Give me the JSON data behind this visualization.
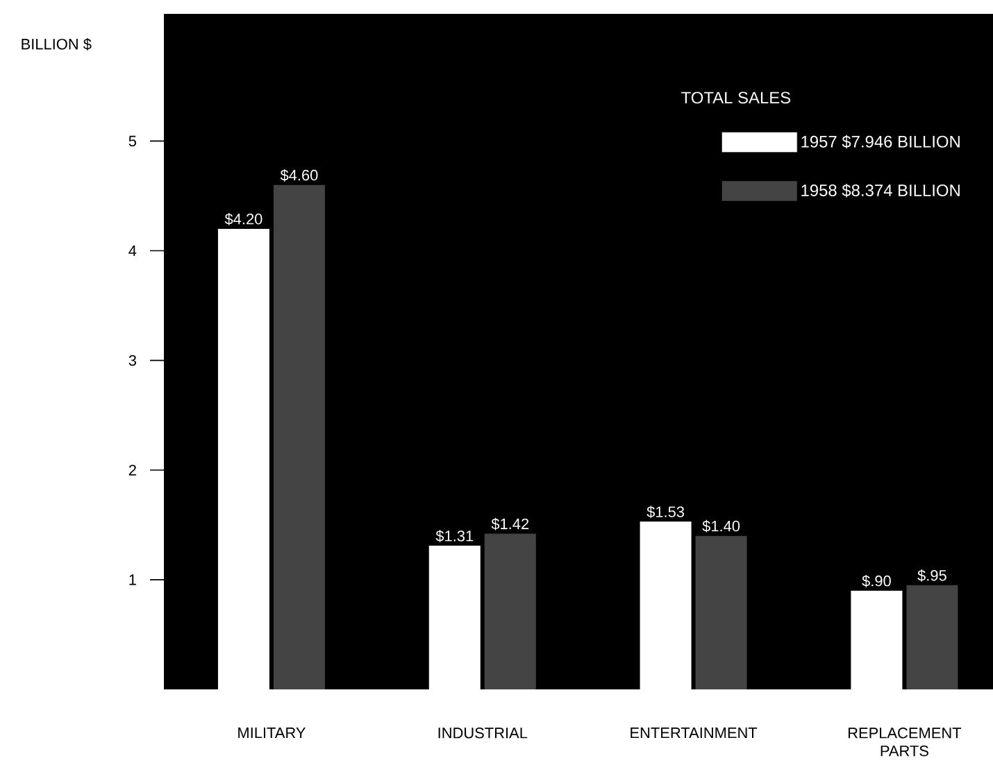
{
  "chart_data": {
    "type": "bar",
    "ylabel": "BILLION $",
    "legend_title": "TOTAL SALES",
    "legend": "top right",
    "categories": [
      "MILITARY",
      "INDUSTRIAL",
      "ENTERTAINMENT",
      "REPLACEMENT PARTS"
    ],
    "series": [
      {
        "name": "1957 $7.946 BILLION",
        "color": "#ffffff",
        "values": [
          4.2,
          1.31,
          1.53,
          0.9
        ],
        "value_labels": [
          "$4.20",
          "$1.31",
          "$1.53",
          "$.90"
        ]
      },
      {
        "name": "1958 $8.374 BILLION",
        "color": "#444444",
        "values": [
          4.6,
          1.42,
          1.4,
          0.95
        ],
        "value_labels": [
          "$4.60",
          "$1.42",
          "$1.40",
          "$.95"
        ]
      }
    ],
    "ylim": [
      0,
      6.16
    ],
    "yticks": [
      1,
      2,
      3,
      4,
      5
    ]
  }
}
